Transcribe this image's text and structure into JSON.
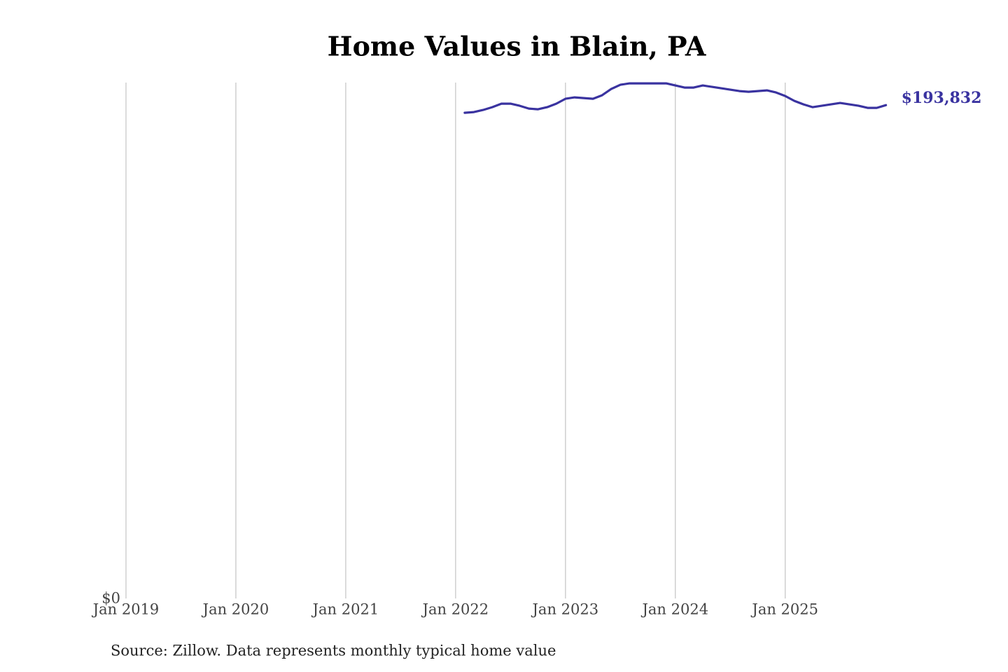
{
  "chart_data": {
    "type": "line",
    "title": "Home Values in Blain, PA",
    "source": "Source: Zillow. Data represents monthly typical home value",
    "x": [
      "2022-02",
      "2022-03",
      "2022-04",
      "2022-05",
      "2022-06",
      "2022-07",
      "2022-08",
      "2022-09",
      "2022-10",
      "2022-11",
      "2022-12",
      "2023-01",
      "2023-02",
      "2023-03",
      "2023-04",
      "2023-05",
      "2023-06",
      "2023-07",
      "2023-08",
      "2023-09",
      "2023-10",
      "2023-11",
      "2023-12",
      "2024-01",
      "2024-02",
      "2024-03",
      "2024-04",
      "2024-05",
      "2024-06",
      "2024-07",
      "2024-08",
      "2024-09",
      "2024-10",
      "2024-11",
      "2024-12",
      "2025-01",
      "2025-02",
      "2025-03",
      "2025-04",
      "2025-05",
      "2025-06",
      "2025-07",
      "2025-08",
      "2025-09",
      "2025-10",
      "2025-11",
      "2025-12"
    ],
    "values": [
      190850,
      191125,
      191950,
      193050,
      194425,
      194425,
      193600,
      192500,
      192225,
      193050,
      194425,
      196350,
      196900,
      196625,
      196350,
      197725,
      200200,
      201850,
      202400,
      202400,
      202400,
      202400,
      202400,
      201575,
      200750,
      200750,
      201575,
      201025,
      200475,
      199925,
      199375,
      199100,
      199375,
      199650,
      198825,
      197450,
      195525,
      194150,
      193050,
      193600,
      194150,
      194700,
      194150,
      193600,
      192775,
      192775,
      193832
    ],
    "value_labels": [
      null,
      null,
      null,
      null,
      null,
      null,
      null,
      null,
      null,
      null,
      null,
      null,
      null,
      null,
      null,
      null,
      null,
      null,
      null,
      null,
      null,
      null,
      null,
      null,
      null,
      null,
      null,
      null,
      null,
      null,
      null,
      null,
      null,
      null,
      null,
      null,
      null,
      null,
      null,
      null,
      null,
      null,
      null,
      null,
      null,
      null,
      "$193,832"
    ],
    "color": "#3a33a0",
    "xlim": [
      "2019-01",
      "2025-12"
    ],
    "xticks": [
      {
        "value": "2019-01",
        "label": "Jan 2019"
      },
      {
        "value": "2020-01",
        "label": "Jan 2020"
      },
      {
        "value": "2021-01",
        "label": "Jan 2021"
      },
      {
        "value": "2022-01",
        "label": "Jan 2022"
      },
      {
        "value": "2023-01",
        "label": "Jan 2023"
      },
      {
        "value": "2024-01",
        "label": "Jan 2024"
      },
      {
        "value": "2025-01",
        "label": "Jan 2025"
      }
    ],
    "ylim": [
      0,
      202700
    ],
    "yticks": [
      {
        "value": 0,
        "label": "$0"
      }
    ],
    "grid": true
  }
}
